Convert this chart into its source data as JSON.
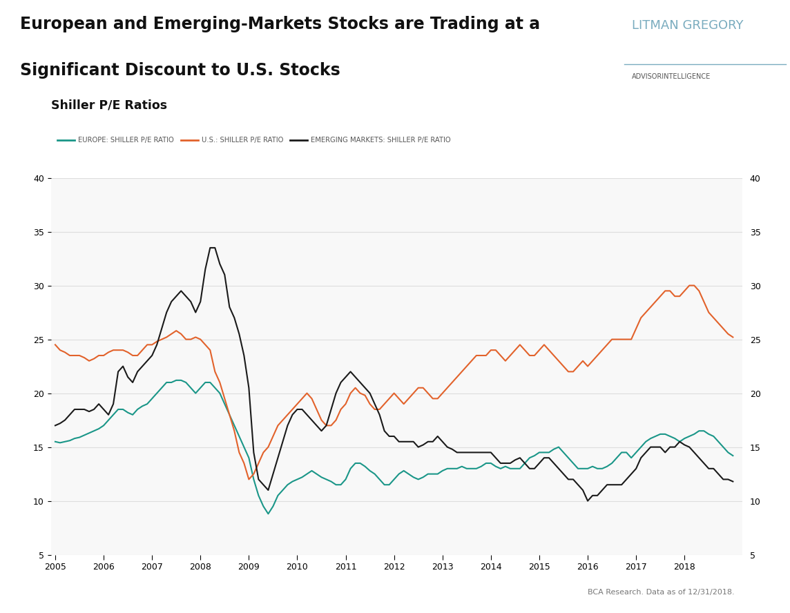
{
  "title_line1": "European and Emerging-Markets Stocks are Trading at a",
  "title_line2": "Significant Discount to U.S. Stocks",
  "subtitle": "Shiller P/E Ratios",
  "brand_name": "LITMAN GREGORY",
  "brand_sub": "ADVISORINTELLIGENCE",
  "source_text": "BCA Research. Data as of 12/31/2018.",
  "legend_labels": [
    "EUROPE: SHILLER P/E RATIO",
    "U.S.: SHILLER P/E RATIO",
    "EMERGING MARKETS: SHILLER P/E RATIO"
  ],
  "colors": {
    "europe": "#1a9688",
    "us": "#e2622b",
    "em": "#1a1a1a",
    "title_bar": "#2c4770",
    "background": "#ffffff",
    "grid": "#dddddd",
    "brand_color": "#7aacbf"
  },
  "ylim": [
    5,
    40
  ],
  "yticks": [
    5,
    10,
    15,
    20,
    25,
    30,
    35,
    40
  ],
  "europe_data": {
    "dates": [
      2005.0,
      2005.1,
      2005.2,
      2005.3,
      2005.4,
      2005.5,
      2005.6,
      2005.7,
      2005.8,
      2005.9,
      2006.0,
      2006.1,
      2006.2,
      2006.3,
      2006.4,
      2006.5,
      2006.6,
      2006.7,
      2006.8,
      2006.9,
      2007.0,
      2007.1,
      2007.2,
      2007.3,
      2007.4,
      2007.5,
      2007.6,
      2007.7,
      2007.8,
      2007.9,
      2008.0,
      2008.1,
      2008.2,
      2008.3,
      2008.4,
      2008.5,
      2008.6,
      2008.7,
      2008.8,
      2008.9,
      2009.0,
      2009.1,
      2009.2,
      2009.3,
      2009.4,
      2009.5,
      2009.6,
      2009.7,
      2009.8,
      2009.9,
      2010.0,
      2010.1,
      2010.2,
      2010.3,
      2010.4,
      2010.5,
      2010.6,
      2010.7,
      2010.8,
      2010.9,
      2011.0,
      2011.1,
      2011.2,
      2011.3,
      2011.4,
      2011.5,
      2011.6,
      2011.7,
      2011.8,
      2011.9,
      2012.0,
      2012.1,
      2012.2,
      2012.3,
      2012.4,
      2012.5,
      2012.6,
      2012.7,
      2012.8,
      2012.9,
      2013.0,
      2013.1,
      2013.2,
      2013.3,
      2013.4,
      2013.5,
      2013.6,
      2013.7,
      2013.8,
      2013.9,
      2014.0,
      2014.1,
      2014.2,
      2014.3,
      2014.4,
      2014.5,
      2014.6,
      2014.7,
      2014.8,
      2014.9,
      2015.0,
      2015.1,
      2015.2,
      2015.3,
      2015.4,
      2015.5,
      2015.6,
      2015.7,
      2015.8,
      2015.9,
      2016.0,
      2016.1,
      2016.2,
      2016.3,
      2016.4,
      2016.5,
      2016.6,
      2016.7,
      2016.8,
      2016.9,
      2017.0,
      2017.1,
      2017.2,
      2017.3,
      2017.4,
      2017.5,
      2017.6,
      2017.7,
      2017.8,
      2017.9,
      2018.0,
      2018.1,
      2018.2,
      2018.3,
      2018.4,
      2018.5,
      2018.6,
      2018.7,
      2018.8,
      2018.9,
      2019.0
    ],
    "values": [
      15.5,
      15.4,
      15.5,
      15.6,
      15.8,
      15.9,
      16.1,
      16.3,
      16.5,
      16.7,
      17.0,
      17.5,
      18.0,
      18.5,
      18.5,
      18.2,
      18.0,
      18.5,
      18.8,
      19.0,
      19.5,
      20.0,
      20.5,
      21.0,
      21.0,
      21.2,
      21.2,
      21.0,
      20.5,
      20.0,
      20.5,
      21.0,
      21.0,
      20.5,
      20.0,
      19.0,
      18.0,
      17.0,
      16.0,
      15.0,
      14.0,
      12.0,
      10.5,
      9.5,
      8.8,
      9.5,
      10.5,
      11.0,
      11.5,
      11.8,
      12.0,
      12.2,
      12.5,
      12.8,
      12.5,
      12.2,
      12.0,
      11.8,
      11.5,
      11.5,
      12.0,
      13.0,
      13.5,
      13.5,
      13.2,
      12.8,
      12.5,
      12.0,
      11.5,
      11.5,
      12.0,
      12.5,
      12.8,
      12.5,
      12.2,
      12.0,
      12.2,
      12.5,
      12.5,
      12.5,
      12.8,
      13.0,
      13.0,
      13.0,
      13.2,
      13.0,
      13.0,
      13.0,
      13.2,
      13.5,
      13.5,
      13.2,
      13.0,
      13.2,
      13.0,
      13.0,
      13.0,
      13.5,
      14.0,
      14.2,
      14.5,
      14.5,
      14.5,
      14.8,
      15.0,
      14.5,
      14.0,
      13.5,
      13.0,
      13.0,
      13.0,
      13.2,
      13.0,
      13.0,
      13.2,
      13.5,
      14.0,
      14.5,
      14.5,
      14.0,
      14.5,
      15.0,
      15.5,
      15.8,
      16.0,
      16.2,
      16.2,
      16.0,
      15.8,
      15.5,
      15.8,
      16.0,
      16.2,
      16.5,
      16.5,
      16.2,
      16.0,
      15.5,
      15.0,
      14.5,
      14.2
    ]
  },
  "us_data": {
    "dates": [
      2005.0,
      2005.1,
      2005.2,
      2005.3,
      2005.4,
      2005.5,
      2005.6,
      2005.7,
      2005.8,
      2005.9,
      2006.0,
      2006.1,
      2006.2,
      2006.3,
      2006.4,
      2006.5,
      2006.6,
      2006.7,
      2006.8,
      2006.9,
      2007.0,
      2007.1,
      2007.2,
      2007.3,
      2007.4,
      2007.5,
      2007.6,
      2007.7,
      2007.8,
      2007.9,
      2008.0,
      2008.1,
      2008.2,
      2008.3,
      2008.4,
      2008.5,
      2008.6,
      2008.7,
      2008.8,
      2008.9,
      2009.0,
      2009.1,
      2009.2,
      2009.3,
      2009.4,
      2009.5,
      2009.6,
      2009.7,
      2009.8,
      2009.9,
      2010.0,
      2010.1,
      2010.2,
      2010.3,
      2010.4,
      2010.5,
      2010.6,
      2010.7,
      2010.8,
      2010.9,
      2011.0,
      2011.1,
      2011.2,
      2011.3,
      2011.4,
      2011.5,
      2011.6,
      2011.7,
      2011.8,
      2011.9,
      2012.0,
      2012.1,
      2012.2,
      2012.3,
      2012.4,
      2012.5,
      2012.6,
      2012.7,
      2012.8,
      2012.9,
      2013.0,
      2013.1,
      2013.2,
      2013.3,
      2013.4,
      2013.5,
      2013.6,
      2013.7,
      2013.8,
      2013.9,
      2014.0,
      2014.1,
      2014.2,
      2014.3,
      2014.4,
      2014.5,
      2014.6,
      2014.7,
      2014.8,
      2014.9,
      2015.0,
      2015.1,
      2015.2,
      2015.3,
      2015.4,
      2015.5,
      2015.6,
      2015.7,
      2015.8,
      2015.9,
      2016.0,
      2016.1,
      2016.2,
      2016.3,
      2016.4,
      2016.5,
      2016.6,
      2016.7,
      2016.8,
      2016.9,
      2017.0,
      2017.1,
      2017.2,
      2017.3,
      2017.4,
      2017.5,
      2017.6,
      2017.7,
      2017.8,
      2017.9,
      2018.0,
      2018.1,
      2018.2,
      2018.3,
      2018.4,
      2018.5,
      2018.6,
      2018.7,
      2018.8,
      2018.9,
      2019.0
    ],
    "values": [
      24.5,
      24.0,
      23.8,
      23.5,
      23.5,
      23.5,
      23.3,
      23.0,
      23.2,
      23.5,
      23.5,
      23.8,
      24.0,
      24.0,
      24.0,
      23.8,
      23.5,
      23.5,
      24.0,
      24.5,
      24.5,
      24.8,
      25.0,
      25.2,
      25.5,
      25.8,
      25.5,
      25.0,
      25.0,
      25.2,
      25.0,
      24.5,
      24.0,
      22.0,
      21.0,
      19.5,
      18.0,
      16.5,
      14.5,
      13.5,
      12.0,
      12.5,
      13.5,
      14.5,
      15.0,
      16.0,
      17.0,
      17.5,
      18.0,
      18.5,
      19.0,
      19.5,
      20.0,
      19.5,
      18.5,
      17.5,
      17.0,
      17.0,
      17.5,
      18.5,
      19.0,
      20.0,
      20.5,
      20.0,
      19.8,
      19.0,
      18.5,
      18.5,
      19.0,
      19.5,
      20.0,
      19.5,
      19.0,
      19.5,
      20.0,
      20.5,
      20.5,
      20.0,
      19.5,
      19.5,
      20.0,
      20.5,
      21.0,
      21.5,
      22.0,
      22.5,
      23.0,
      23.5,
      23.5,
      23.5,
      24.0,
      24.0,
      23.5,
      23.0,
      23.5,
      24.0,
      24.5,
      24.0,
      23.5,
      23.5,
      24.0,
      24.5,
      24.0,
      23.5,
      23.0,
      22.5,
      22.0,
      22.0,
      22.5,
      23.0,
      22.5,
      23.0,
      23.5,
      24.0,
      24.5,
      25.0,
      25.0,
      25.0,
      25.0,
      25.0,
      26.0,
      27.0,
      27.5,
      28.0,
      28.5,
      29.0,
      29.5,
      29.5,
      29.0,
      29.0,
      29.5,
      30.0,
      30.0,
      29.5,
      28.5,
      27.5,
      27.0,
      26.5,
      26.0,
      25.5,
      25.2
    ]
  },
  "em_data": {
    "dates": [
      2005.0,
      2005.1,
      2005.2,
      2005.3,
      2005.4,
      2005.5,
      2005.6,
      2005.7,
      2005.8,
      2005.9,
      2006.0,
      2006.1,
      2006.2,
      2006.3,
      2006.4,
      2006.5,
      2006.6,
      2006.7,
      2006.8,
      2006.9,
      2007.0,
      2007.1,
      2007.2,
      2007.3,
      2007.4,
      2007.5,
      2007.6,
      2007.7,
      2007.8,
      2007.9,
      2008.0,
      2008.1,
      2008.2,
      2008.3,
      2008.4,
      2008.5,
      2008.6,
      2008.7,
      2008.8,
      2008.9,
      2009.0,
      2009.1,
      2009.2,
      2009.3,
      2009.4,
      2009.5,
      2009.6,
      2009.7,
      2009.8,
      2009.9,
      2010.0,
      2010.1,
      2010.2,
      2010.3,
      2010.4,
      2010.5,
      2010.6,
      2010.7,
      2010.8,
      2010.9,
      2011.0,
      2011.1,
      2011.2,
      2011.3,
      2011.4,
      2011.5,
      2011.6,
      2011.7,
      2011.8,
      2011.9,
      2012.0,
      2012.1,
      2012.2,
      2012.3,
      2012.4,
      2012.5,
      2012.6,
      2012.7,
      2012.8,
      2012.9,
      2013.0,
      2013.1,
      2013.2,
      2013.3,
      2013.4,
      2013.5,
      2013.6,
      2013.7,
      2013.8,
      2013.9,
      2014.0,
      2014.1,
      2014.2,
      2014.3,
      2014.4,
      2014.5,
      2014.6,
      2014.7,
      2014.8,
      2014.9,
      2015.0,
      2015.1,
      2015.2,
      2015.3,
      2015.4,
      2015.5,
      2015.6,
      2015.7,
      2015.8,
      2015.9,
      2016.0,
      2016.1,
      2016.2,
      2016.3,
      2016.4,
      2016.5,
      2016.6,
      2016.7,
      2016.8,
      2016.9,
      2017.0,
      2017.1,
      2017.2,
      2017.3,
      2017.4,
      2017.5,
      2017.6,
      2017.7,
      2017.8,
      2017.9,
      2018.0,
      2018.1,
      2018.2,
      2018.3,
      2018.4,
      2018.5,
      2018.6,
      2018.7,
      2018.8,
      2018.9,
      2019.0
    ],
    "values": [
      17.0,
      17.2,
      17.5,
      18.0,
      18.5,
      18.5,
      18.5,
      18.3,
      18.5,
      19.0,
      18.5,
      18.0,
      19.0,
      22.0,
      22.5,
      21.5,
      21.0,
      22.0,
      22.5,
      23.0,
      23.5,
      24.5,
      26.0,
      27.5,
      28.5,
      29.0,
      29.5,
      29.0,
      28.5,
      27.5,
      28.5,
      31.5,
      33.5,
      33.5,
      32.0,
      31.0,
      28.0,
      27.0,
      25.5,
      23.5,
      20.5,
      14.5,
      12.0,
      11.5,
      11.0,
      12.5,
      14.0,
      15.5,
      17.0,
      18.0,
      18.5,
      18.5,
      18.0,
      17.5,
      17.0,
      16.5,
      17.0,
      18.5,
      20.0,
      21.0,
      21.5,
      22.0,
      21.5,
      21.0,
      20.5,
      20.0,
      19.0,
      18.0,
      16.5,
      16.0,
      16.0,
      15.5,
      15.5,
      15.5,
      15.5,
      15.0,
      15.2,
      15.5,
      15.5,
      16.0,
      15.5,
      15.0,
      14.8,
      14.5,
      14.5,
      14.5,
      14.5,
      14.5,
      14.5,
      14.5,
      14.5,
      14.0,
      13.5,
      13.5,
      13.5,
      13.8,
      14.0,
      13.5,
      13.0,
      13.0,
      13.5,
      14.0,
      14.0,
      13.5,
      13.0,
      12.5,
      12.0,
      12.0,
      11.5,
      11.0,
      10.0,
      10.5,
      10.5,
      11.0,
      11.5,
      11.5,
      11.5,
      11.5,
      12.0,
      12.5,
      13.0,
      14.0,
      14.5,
      15.0,
      15.0,
      15.0,
      14.5,
      15.0,
      15.0,
      15.5,
      15.2,
      15.0,
      14.5,
      14.0,
      13.5,
      13.0,
      13.0,
      12.5,
      12.0,
      12.0,
      11.8
    ]
  }
}
